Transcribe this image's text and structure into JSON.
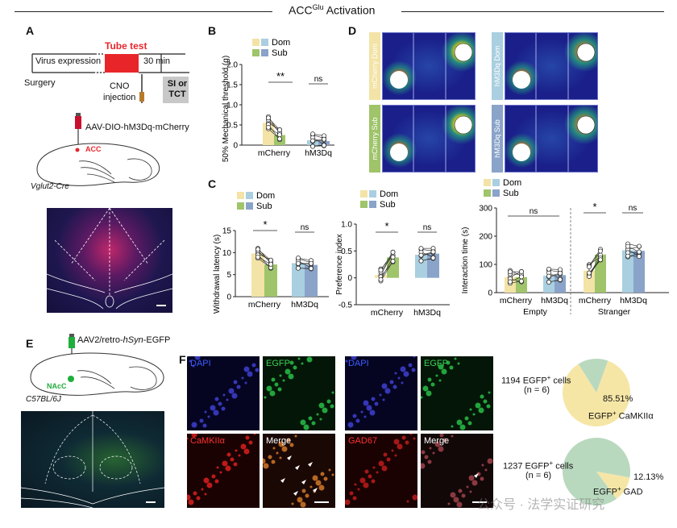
{
  "header": {
    "title_main": "ACC",
    "title_sup": "Glu",
    "title_rest": " Activation"
  },
  "colors": {
    "dom_yellow": "#f3e3a6",
    "sub_green": "#9fc46a",
    "dom_blue": "#a9cfe0",
    "sub_blue": "#8aa3c9",
    "tube_red": "#e8262a",
    "gray_box": "#c8c8c8",
    "pie_yellow": "#f6e6a6",
    "pie_green": "#b9d9bf",
    "egfp_green": "#1fae3c"
  },
  "panelA": {
    "letter": "A",
    "tube_test": "Tube test",
    "virus_expression": "Virus expression",
    "surgery": "Surgery",
    "min30": "30 min",
    "cno1": "CNO",
    "cno2": "injection",
    "si1": "SI or",
    "si2": "TCT",
    "virus": "AAV-DIO-hM3Dq-mCherry",
    "acc": "ACC",
    "strain": "Vglut2-Cre"
  },
  "panelB": {
    "letter": "B",
    "legend_dom": "Dom",
    "legend_sub": "Sub",
    "sig1": "**",
    "sig2": "ns",
    "ylabel": "50% Mechanical threshold (g)",
    "ticks": [
      "0",
      "0.5",
      "1.0",
      "1.5",
      "2.0"
    ],
    "xcats": [
      "mCherry",
      "hM3Dq"
    ]
  },
  "panelC": {
    "letter": "C",
    "legend_dom": "Dom",
    "legend_sub": "Sub",
    "c1": {
      "ylabel": "Withdrawal latency (s)",
      "ticks": [
        "0",
        "5",
        "10",
        "15"
      ],
      "sig1": "*",
      "sig2": "ns",
      "xcats": [
        "mCherry",
        "hM3Dq"
      ]
    },
    "c2": {
      "ylabel": "Preference index",
      "ticks": [
        "-0.5",
        "0",
        "0.5",
        "1.0"
      ],
      "sig1": "*",
      "sig2": "ns",
      "xcats": [
        "mCherry",
        "hM3Dq"
      ]
    },
    "c3": {
      "ylabel": "Interaction time (s)",
      "ticks": [
        "0",
        "100",
        "200",
        "300"
      ],
      "sig_empty": "ns",
      "sig1": "*",
      "sig2": "ns",
      "xcats": [
        "mCherry",
        "hM3Dq",
        "mCherry",
        "hM3Dq"
      ],
      "groups": [
        "Empty",
        "Stranger"
      ]
    }
  },
  "panelD": {
    "letter": "D",
    "labels": [
      "mCherry Dom",
      "hM3Dq Dom",
      "mCherry Sub",
      "hM3Dq Sub"
    ]
  },
  "panelE": {
    "letter": "E",
    "virus_pre": "AAV2/retro-",
    "virus_it": "hSyn",
    "virus_post": "-EGFP",
    "nacc": "NAcC",
    "strain": "C57BL/6J"
  },
  "panelF": {
    "letter": "F",
    "labels": [
      "DAPI",
      "EGFP",
      "DAPI",
      "EGFP",
      "CaMKIIα",
      "Merge",
      "GAD67",
      "Merge"
    ],
    "pie1": {
      "cells_pre": "1194 EGFP",
      "cells_sup": "+",
      "cells_post": " cells",
      "n": "(n = 6)",
      "pct": "85.51%",
      "lab_pre": "EGFP",
      "lab_sup": "+",
      "lab_post": " CaMKIIα",
      "value": 85.51
    },
    "pie2": {
      "cells_pre": "1237 EGFP",
      "cells_sup": "+",
      "cells_post": " cells",
      "n": "(n = 6)",
      "pct": "12.13%",
      "lab_pre": "EGFP",
      "lab_sup": "+",
      "lab_post": " GAD",
      "value": 12.13
    }
  },
  "chart_data": [
    {
      "type": "bar",
      "panel": "B",
      "categories": [
        "mCherry",
        "hM3Dq"
      ],
      "series": [
        {
          "name": "Dom",
          "values": [
            0.55,
            0.12
          ]
        },
        {
          "name": "Sub",
          "values": [
            0.25,
            0.1
          ]
        }
      ],
      "ylabel": "50% Mechanical threshold (g)",
      "ylim": [
        0,
        2.0
      ],
      "annotations": [
        "**",
        "ns"
      ]
    },
    {
      "type": "bar",
      "panel": "C",
      "categories": [
        "mCherry",
        "hM3Dq"
      ],
      "series": [
        {
          "name": "Dom",
          "values": [
            9.8,
            7.6
          ]
        },
        {
          "name": "Sub",
          "values": [
            7.3,
            7.2
          ]
        }
      ],
      "ylabel": "Withdrawal latency (s)",
      "ylim": [
        0,
        15
      ],
      "annotations": [
        "*",
        "ns"
      ]
    },
    {
      "type": "bar",
      "panel": "C",
      "categories": [
        "mCherry",
        "hM3Dq"
      ],
      "series": [
        {
          "name": "Dom",
          "values": [
            0.05,
            0.43
          ]
        },
        {
          "name": "Sub",
          "values": [
            0.38,
            0.45
          ]
        }
      ],
      "ylabel": "Preference index",
      "ylim": [
        -0.5,
        1.0
      ],
      "annotations": [
        "*",
        "ns"
      ]
    },
    {
      "type": "bar",
      "panel": "C",
      "categories": [
        "mCherry",
        "hM3Dq",
        "mCherry",
        "hM3Dq"
      ],
      "groups": [
        "Empty",
        "Empty",
        "Stranger",
        "Stranger"
      ],
      "series": [
        {
          "name": "Dom",
          "values": [
            55,
            60,
            78,
            150
          ]
        },
        {
          "name": "Sub",
          "values": [
            55,
            62,
            135,
            148
          ]
        }
      ],
      "ylabel": "Interaction time (s)",
      "ylim": [
        0,
        300
      ],
      "annotations": [
        "ns",
        "*",
        "ns"
      ]
    },
    {
      "type": "pie",
      "panel": "F",
      "labels": [
        "EGFP+ CaMKIIα",
        "other"
      ],
      "values": [
        85.51,
        14.49
      ]
    },
    {
      "type": "pie",
      "panel": "F",
      "labels": [
        "EGFP+ GAD",
        "other"
      ],
      "values": [
        12.13,
        87.87
      ]
    }
  ],
  "watermark": "公众号 · 法学实证研究"
}
